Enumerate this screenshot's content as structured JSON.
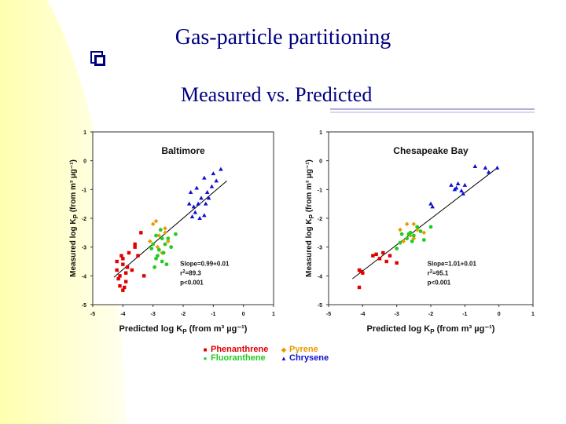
{
  "slide": {
    "title": "Gas-particle partitioning",
    "subtitle": "Measured vs. Predicted",
    "colors": {
      "title": "#000080",
      "background_wash": "#ffffb0",
      "decor_lines": "#b0b0d8"
    }
  },
  "legend": [
    {
      "label": "Phenanthrene",
      "color": "#e00000",
      "marker": "square"
    },
    {
      "label": "Pyrene",
      "color": "#e89a00",
      "marker": "diamond"
    },
    {
      "label": "Fluoranthene",
      "color": "#22cc22",
      "marker": "circle"
    },
    {
      "label": "Chrysene",
      "color": "#1010d0",
      "marker": "triangle"
    }
  ],
  "chart_data": [
    {
      "type": "scatter",
      "title": "Baltimore",
      "xlabel": "Predicted log K_P (from m³ µg⁻¹)",
      "ylabel": "Measured log K_P (from m³ µg⁻¹)",
      "xlim": [
        -5,
        1
      ],
      "ylim": [
        -5,
        1
      ],
      "xticks": [
        -5,
        -4,
        -3,
        -2,
        -1,
        0,
        1
      ],
      "yticks": [
        -5,
        -4,
        -3,
        -2,
        -1,
        0,
        1
      ],
      "stats": [
        "Slope=0.99+0.01",
        "r²=89.3",
        "p<0.001"
      ],
      "fit_line": {
        "x": [
          -4.3,
          -0.55
        ],
        "y": [
          -4.05,
          -0.7
        ]
      },
      "series": [
        {
          "name": "Phenanthrene",
          "marker": "square",
          "color": "#e00000",
          "points": [
            [
              -4.0,
              -4.5
            ],
            [
              -4.1,
              -4.35
            ],
            [
              -3.9,
              -3.9
            ],
            [
              -4.2,
              -3.5
            ],
            [
              -3.8,
              -3.2
            ],
            [
              -3.6,
              -3.0
            ],
            [
              -3.4,
              -2.5
            ],
            [
              -3.5,
              -3.3
            ],
            [
              -4.0,
              -3.6
            ],
            [
              -3.7,
              -3.8
            ],
            [
              -4.1,
              -4.0
            ],
            [
              -3.9,
              -4.2
            ],
            [
              -3.3,
              -4.0
            ],
            [
              -3.6,
              -2.9
            ],
            [
              -4.0,
              -3.4
            ],
            [
              -4.2,
              -3.8
            ],
            [
              -3.95,
              -4.4
            ],
            [
              -4.05,
              -3.3
            ],
            [
              -3.85,
              -3.7
            ],
            [
              -4.15,
              -4.1
            ]
          ]
        },
        {
          "name": "Pyrene",
          "marker": "diamond",
          "color": "#e89a00",
          "points": [
            [
              -3.0,
              -2.2
            ],
            [
              -2.8,
              -2.6
            ],
            [
              -2.6,
              -2.35
            ],
            [
              -2.9,
              -2.1
            ],
            [
              -2.7,
              -3.2
            ],
            [
              -3.1,
              -2.8
            ],
            [
              -2.5,
              -2.8
            ],
            [
              -2.85,
              -3.0
            ],
            [
              -2.6,
              -2.5
            ]
          ]
        },
        {
          "name": "Fluoranthene",
          "marker": "circle",
          "color": "#22cc22",
          "points": [
            [
              -3.0,
              -2.9
            ],
            [
              -2.8,
              -3.1
            ],
            [
              -2.9,
              -3.4
            ],
            [
              -2.7,
              -3.5
            ],
            [
              -2.6,
              -2.9
            ],
            [
              -2.4,
              -3.0
            ],
            [
              -2.75,
              -2.4
            ],
            [
              -2.9,
              -2.6
            ],
            [
              -2.55,
              -3.6
            ],
            [
              -2.85,
              -3.3
            ],
            [
              -3.05,
              -3.05
            ],
            [
              -2.5,
              -2.7
            ],
            [
              -2.7,
              -2.7
            ],
            [
              -2.95,
              -3.7
            ],
            [
              -2.65,
              -3.2
            ],
            [
              -2.25,
              -2.55
            ]
          ]
        },
        {
          "name": "Chrysene",
          "marker": "triangle",
          "color": "#1010d0",
          "points": [
            [
              -1.75,
              -1.1
            ],
            [
              -1.55,
              -0.95
            ],
            [
              -1.3,
              -0.6
            ],
            [
              -1.0,
              -0.45
            ],
            [
              -0.75,
              -0.3
            ],
            [
              -1.65,
              -1.6
            ],
            [
              -1.4,
              -1.3
            ],
            [
              -1.2,
              -1.1
            ],
            [
              -1.8,
              -1.5
            ],
            [
              -1.5,
              -1.5
            ],
            [
              -1.3,
              -1.9
            ],
            [
              -1.6,
              -1.8
            ],
            [
              -1.45,
              -2.0
            ],
            [
              -1.15,
              -1.3
            ],
            [
              -0.9,
              -0.7
            ],
            [
              -1.25,
              -1.5
            ],
            [
              -1.7,
              -1.95
            ],
            [
              -1.05,
              -0.9
            ]
          ]
        }
      ]
    },
    {
      "type": "scatter",
      "title": "Chesapeake Bay",
      "xlabel": "Predicted log K_P (from m³ µg⁻¹)",
      "ylabel": "Measured log K_P (from m³ µg⁻¹)",
      "xlim": [
        -5,
        1
      ],
      "ylim": [
        -5,
        1
      ],
      "xticks": [
        -5,
        -4,
        -3,
        -2,
        -1,
        0,
        1
      ],
      "yticks": [
        -5,
        -4,
        -3,
        -2,
        -1,
        0,
        1
      ],
      "stats": [
        "Slope=1.01+0.01",
        "r²=95.1",
        "p<0.001"
      ],
      "fit_line": {
        "x": [
          -4.3,
          -0.05
        ],
        "y": [
          -4.1,
          -0.25
        ]
      },
      "series": [
        {
          "name": "Phenanthrene",
          "marker": "square",
          "color": "#e00000",
          "points": [
            [
              -4.1,
              -3.8
            ],
            [
              -4.0,
              -3.9
            ],
            [
              -4.1,
              -4.4
            ],
            [
              -3.7,
              -3.3
            ],
            [
              -3.6,
              -3.25
            ],
            [
              -3.4,
              -3.2
            ],
            [
              -3.2,
              -3.3
            ],
            [
              -3.5,
              -3.4
            ],
            [
              -3.0,
              -3.55
            ],
            [
              -3.3,
              -3.5
            ],
            [
              -4.05,
              -3.85
            ]
          ]
        },
        {
          "name": "Pyrene",
          "marker": "diamond",
          "color": "#e89a00",
          "points": [
            [
              -2.9,
              -2.4
            ],
            [
              -2.7,
              -2.2
            ],
            [
              -2.5,
              -2.2
            ],
            [
              -2.6,
              -2.6
            ],
            [
              -2.4,
              -2.4
            ],
            [
              -2.8,
              -2.8
            ],
            [
              -2.2,
              -2.5
            ],
            [
              -2.5,
              -2.7
            ]
          ]
        },
        {
          "name": "Fluoranthene",
          "marker": "circle",
          "color": "#22cc22",
          "points": [
            [
              -3.0,
              -3.05
            ],
            [
              -2.9,
              -2.85
            ],
            [
              -2.7,
              -2.7
            ],
            [
              -2.6,
              -2.5
            ],
            [
              -2.5,
              -2.6
            ],
            [
              -2.3,
              -2.45
            ],
            [
              -2.0,
              -2.3
            ],
            [
              -2.85,
              -2.55
            ],
            [
              -2.55,
              -2.8
            ],
            [
              -2.4,
              -2.3
            ],
            [
              -2.65,
              -2.55
            ],
            [
              -2.2,
              -2.75
            ]
          ]
        },
        {
          "name": "Chrysene",
          "marker": "triangle",
          "color": "#1010d0",
          "points": [
            [
              -2.0,
              -1.5
            ],
            [
              -1.95,
              -1.6
            ],
            [
              -1.4,
              -0.85
            ],
            [
              -1.2,
              -0.8
            ],
            [
              -1.0,
              -0.85
            ],
            [
              -1.3,
              -1.0
            ],
            [
              -1.1,
              -1.05
            ],
            [
              -0.7,
              -0.2
            ],
            [
              -0.4,
              -0.25
            ],
            [
              -0.3,
              -0.4
            ],
            [
              -0.05,
              -0.25
            ],
            [
              -1.05,
              -1.15
            ],
            [
              -1.25,
              -0.95
            ]
          ]
        }
      ]
    }
  ]
}
